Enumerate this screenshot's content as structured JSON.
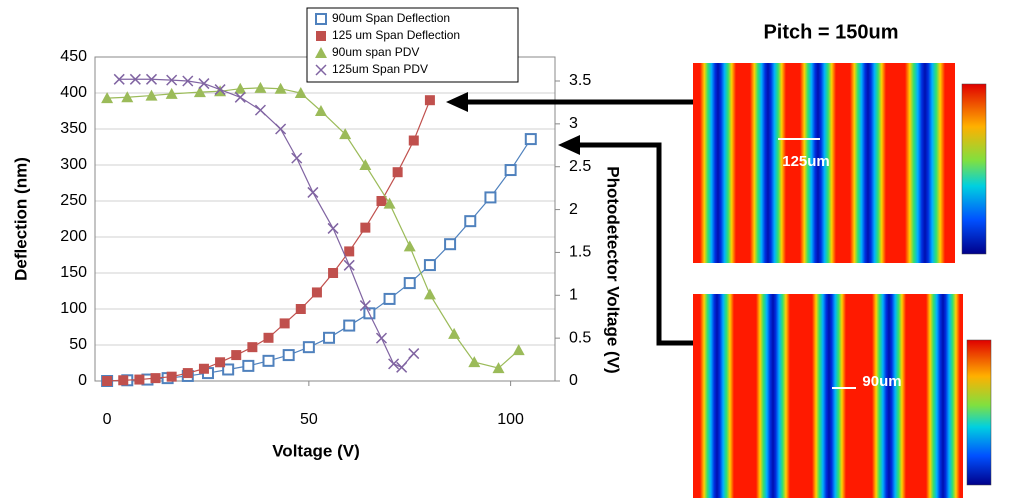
{
  "chart_data": {
    "type": "line",
    "x_label": "Voltage (V)",
    "y_label": "Deflection (nm)",
    "y2_label": "Photodetector Voltage (V)",
    "xlim": [
      -3,
      111
    ],
    "xticks": [
      0,
      50,
      100
    ],
    "ylim": [
      0,
      450
    ],
    "yticks": [
      0,
      50,
      100,
      150,
      200,
      250,
      300,
      350,
      400,
      450
    ],
    "y2lim": [
      0,
      3.78
    ],
    "y2ticks": [
      0,
      0.5,
      1,
      1.5,
      2,
      2.5,
      3,
      3.5
    ],
    "grid": true,
    "series": [
      {
        "name": "90um Span Deflection",
        "color": "#4f81bd",
        "marker": "square-open",
        "x": [
          0,
          5,
          10,
          15,
          20,
          25,
          30,
          35,
          40,
          45,
          50,
          55,
          60,
          65,
          70,
          75,
          80,
          85,
          90,
          95,
          100,
          105
        ],
        "values": [
          0,
          1,
          2,
          4,
          7,
          11,
          16,
          21,
          28,
          36,
          47,
          60,
          77,
          94,
          114,
          136,
          161,
          190,
          222,
          255,
          293,
          336
        ]
      },
      {
        "name": "125 um Span Deflection",
        "color": "#c0504d",
        "marker": "square",
        "x": [
          0,
          4,
          8,
          12,
          16,
          20,
          24,
          28,
          32,
          36,
          40,
          44,
          48,
          52,
          56,
          60,
          64,
          68,
          72,
          76,
          80
        ],
        "values": [
          0,
          1,
          2,
          4,
          6,
          11,
          17,
          26,
          36,
          47,
          60,
          80,
          100,
          123,
          150,
          180,
          213,
          250,
          290,
          334,
          390
        ]
      },
      {
        "name": "90um span PDV",
        "color": "#9bbb59",
        "marker": "triangle",
        "axis": "y2",
        "x": [
          0,
          5,
          11,
          16,
          23,
          28,
          33,
          38,
          43,
          48,
          53,
          59,
          64,
          70,
          75,
          80,
          86,
          91,
          97,
          102
        ],
        "values": [
          3.3,
          3.31,
          3.33,
          3.35,
          3.37,
          3.38,
          3.41,
          3.42,
          3.41,
          3.36,
          3.15,
          2.88,
          2.52,
          2.07,
          1.57,
          1.01,
          0.55,
          0.22,
          0.15,
          0.36
        ]
      },
      {
        "name": "125um Span PDV",
        "color": "#8064a2",
        "marker": "x",
        "axis": "y2",
        "x": [
          3,
          7,
          11,
          16,
          20,
          24,
          28,
          33,
          38,
          43,
          47,
          51,
          56,
          60,
          64,
          68,
          71,
          73,
          76
        ],
        "values": [
          3.52,
          3.52,
          3.52,
          3.51,
          3.5,
          3.47,
          3.4,
          3.31,
          3.16,
          2.94,
          2.6,
          2.2,
          1.78,
          1.35,
          0.88,
          0.5,
          0.2,
          0.16,
          0.32
        ]
      }
    ]
  },
  "images": {
    "title": "Pitch = 150um",
    "top_label": "125um",
    "bottom_label": "90um"
  }
}
